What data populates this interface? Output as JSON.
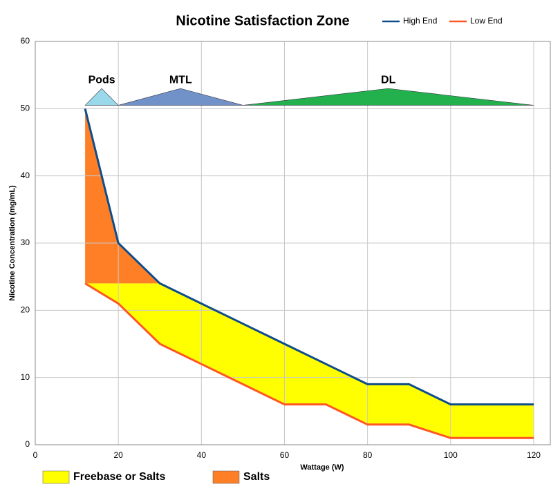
{
  "chart_data": {
    "type": "line",
    "title": "Nicotine Satisfaction Zone",
    "x_label": "Wattage (W)",
    "y_label": "Nicotine Concentration (mg/mL)",
    "xlim": [
      0,
      124
    ],
    "xticks": [
      0,
      20,
      40,
      60,
      80,
      100,
      120
    ],
    "ylim": [
      0,
      60
    ],
    "yticks": [
      0,
      10,
      20,
      30,
      40,
      50,
      60
    ],
    "grid": true,
    "x": [
      12,
      20,
      30,
      40,
      50,
      60,
      70,
      80,
      90,
      100,
      120
    ],
    "series": [
      {
        "name": "High End",
        "color": "#0f4c8a",
        "values": [
          50,
          30,
          24,
          21,
          18,
          15,
          12,
          9,
          9,
          6,
          6
        ]
      },
      {
        "name": "Low End",
        "color": "#ff5722",
        "values": [
          24,
          21,
          15,
          12,
          9,
          6,
          6,
          3,
          3,
          1,
          1
        ]
      }
    ],
    "areas": [
      {
        "name": "Freebase or Salts",
        "color": "#ffff00",
        "x": [
          12,
          20,
          30,
          40,
          50,
          60,
          70,
          80,
          90,
          100,
          120
        ],
        "upper": [
          24,
          24,
          24,
          21,
          18,
          15,
          12,
          9,
          9,
          6,
          6
        ],
        "lower": [
          24,
          21,
          15,
          12,
          9,
          6,
          6,
          3,
          3,
          1,
          1
        ]
      },
      {
        "name": "Salts",
        "color": "#ff7f27",
        "x": [
          12,
          20,
          30
        ],
        "upper": [
          50,
          30,
          24
        ],
        "lower": [
          24,
          24,
          24
        ]
      }
    ],
    "zones": [
      {
        "label": "Pods",
        "color": "#99d9ea",
        "x": [
          12,
          16,
          20
        ],
        "y": [
          50.5,
          53,
          50.5
        ]
      },
      {
        "label": "MTL",
        "color": "#7092c8",
        "x": [
          20,
          35,
          50
        ],
        "y": [
          50.5,
          53,
          50.5
        ]
      },
      {
        "label": "DL",
        "color": "#22b14c",
        "x": [
          50,
          85,
          120
        ],
        "y": [
          50.5,
          53,
          50.5
        ]
      }
    ]
  }
}
